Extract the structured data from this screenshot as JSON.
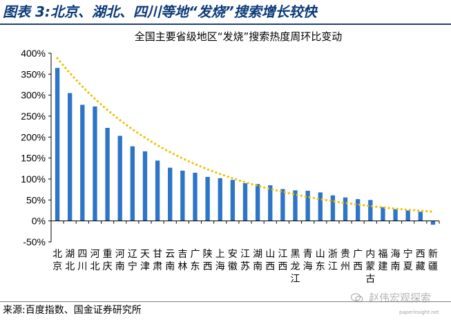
{
  "figure": {
    "title": "图表 3:北京、湖北、四川等地“发烧”搜索增长较快",
    "source": "来源:百度指数、国金证券研究所",
    "watermark": "赵伟宏观探索",
    "watermark_sub": "paperinsight.net"
  },
  "colors": {
    "bar": "#2e75c8",
    "trend": "#f0c000",
    "title": "#0b3a78"
  },
  "chart_data": {
    "type": "bar",
    "title": "全国主要省级地区“发烧”搜索热度周环比变动",
    "xlabel": "",
    "ylabel": "",
    "ylim": [
      -0.5,
      4.0
    ],
    "yticks": [
      "-50%",
      "0%",
      "50%",
      "100%",
      "150%",
      "200%",
      "250%",
      "300%",
      "350%",
      "400%"
    ],
    "ytick_values": [
      -0.5,
      0,
      0.5,
      1.0,
      1.5,
      2.0,
      2.5,
      3.0,
      3.5,
      4.0
    ],
    "categories": [
      "北京",
      "湖北",
      "四川",
      "河北",
      "重庆",
      "河南",
      "辽宁",
      "天津",
      "甘肃",
      "云南",
      "吉林",
      "广东",
      "陕西",
      "上海",
      "安徽",
      "江苏",
      "湖南",
      "山西",
      "江西",
      "黑龙江",
      "青海",
      "山东",
      "浙江",
      "贵州",
      "广西",
      "内蒙古",
      "福建",
      "海南",
      "宁夏",
      "西藏",
      "新疆"
    ],
    "values": [
      3.65,
      3.05,
      2.77,
      2.73,
      2.22,
      2.03,
      1.78,
      1.66,
      1.44,
      1.27,
      1.2,
      1.15,
      1.05,
      1.02,
      0.98,
      0.9,
      0.88,
      0.85,
      0.76,
      0.73,
      0.72,
      0.68,
      0.61,
      0.56,
      0.52,
      0.5,
      0.33,
      0.28,
      0.25,
      0.22,
      -0.09
    ],
    "series": [
      {
        "values": [
          3.65,
          3.05,
          2.77,
          2.73,
          2.22,
          2.03,
          1.78,
          1.66,
          1.44,
          1.27,
          1.2,
          1.15,
          1.05,
          1.02,
          0.98,
          0.9,
          0.88,
          0.85,
          0.76,
          0.73,
          0.72,
          0.68,
          0.61,
          0.56,
          0.52,
          0.5,
          0.33,
          0.28,
          0.25,
          0.22,
          -0.09
        ]
      }
    ],
    "trendline": {
      "type": "exponential",
      "style": "dotted",
      "start_value": 3.88,
      "end_value": 0.22
    },
    "grid": false,
    "legend": "none"
  }
}
